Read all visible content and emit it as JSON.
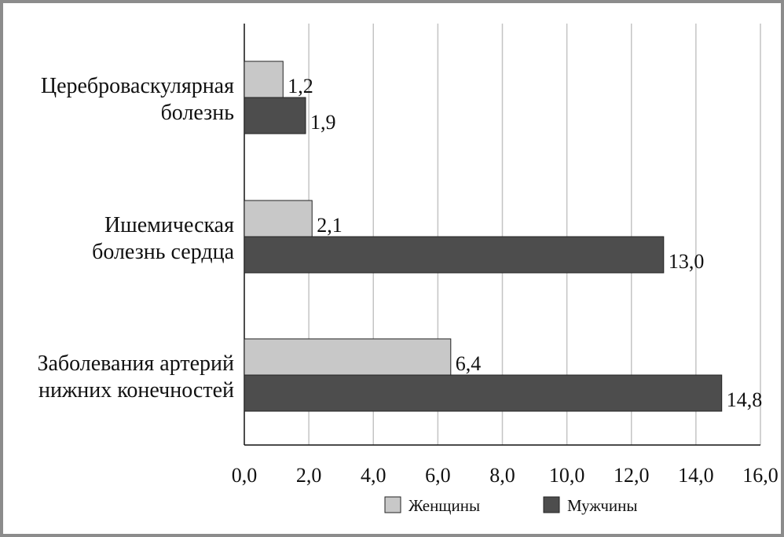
{
  "chart_data": {
    "type": "bar",
    "orientation": "horizontal",
    "categories": [
      [
        "Цереброваскулярная",
        "болезнь"
      ],
      [
        "Ишемическая",
        "болезнь сердца"
      ],
      [
        "Заболевания артерий",
        "нижних конечностей"
      ]
    ],
    "series": [
      {
        "name": "Женщины",
        "values": [
          1.2,
          2.1,
          6.4
        ],
        "labels": [
          "1,2",
          "2,1",
          "6,4"
        ],
        "color": "#c8c8c8"
      },
      {
        "name": "Мужчины",
        "values": [
          1.9,
          13.0,
          14.8
        ],
        "labels": [
          "1,9",
          "13,0",
          "14,8"
        ],
        "color": "#4d4d4d"
      }
    ],
    "xlim": [
      0,
      16
    ],
    "xticks": [
      0,
      2,
      4,
      6,
      8,
      10,
      12,
      14,
      16
    ],
    "xtick_labels": [
      "0,0",
      "2,0",
      "4,0",
      "6,0",
      "8,0",
      "10,0",
      "12,0",
      "14,0",
      "16,0"
    ],
    "grid": "vertical",
    "legend_position": "bottom",
    "title": "",
    "xlabel": "",
    "ylabel": ""
  }
}
